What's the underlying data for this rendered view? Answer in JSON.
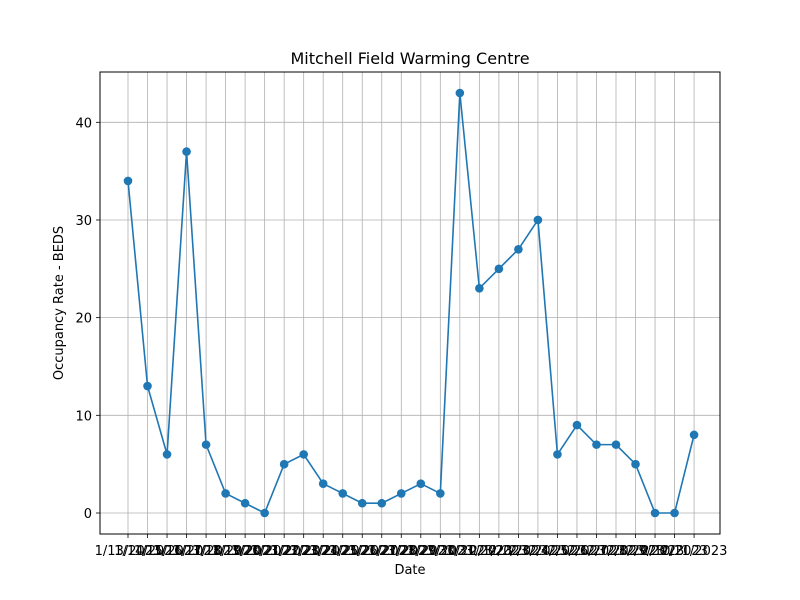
{
  "chart_data": {
    "type": "line",
    "title": "Mitchell Field Warming Centre",
    "xlabel": "Date",
    "ylabel": "Occupancy Rate - BEDS",
    "categories": [
      "1/13/2023",
      "1/14/2023",
      "1/15/2023",
      "1/16/2023",
      "1/17/2023",
      "1/18/2023",
      "1/19/2023",
      "1/20/2023",
      "1/21/2023",
      "1/22/2023",
      "1/23/2023",
      "1/24/2023",
      "1/25/2023",
      "1/26/2023",
      "1/27/2023",
      "1/28/2023",
      "1/29/2023",
      "1/30/2023",
      "1/31/2023",
      "2/1/2023",
      "2/2/2023",
      "2/3/2023",
      "2/4/2023",
      "2/5/2023",
      "2/6/2023",
      "2/7/2023",
      "2/8/2023",
      "2/9/2023",
      "2/10/2023",
      "2/11/2023"
    ],
    "series": [
      {
        "values": [
          34,
          13,
          6,
          37,
          7,
          2,
          1,
          0,
          5,
          6,
          3,
          2,
          1,
          1,
          2,
          3,
          2,
          43,
          23,
          25,
          27,
          30,
          6,
          9,
          7,
          7,
          5,
          0,
          0,
          8
        ]
      }
    ],
    "ylim": [
      -2.15,
      45.15
    ],
    "yticks": [
      0,
      10,
      20,
      30,
      40
    ],
    "grid": true,
    "legend": "none",
    "colors": {
      "line": "#1f77b4",
      "grid": "#b0b0b0",
      "axis": "#000000"
    }
  }
}
